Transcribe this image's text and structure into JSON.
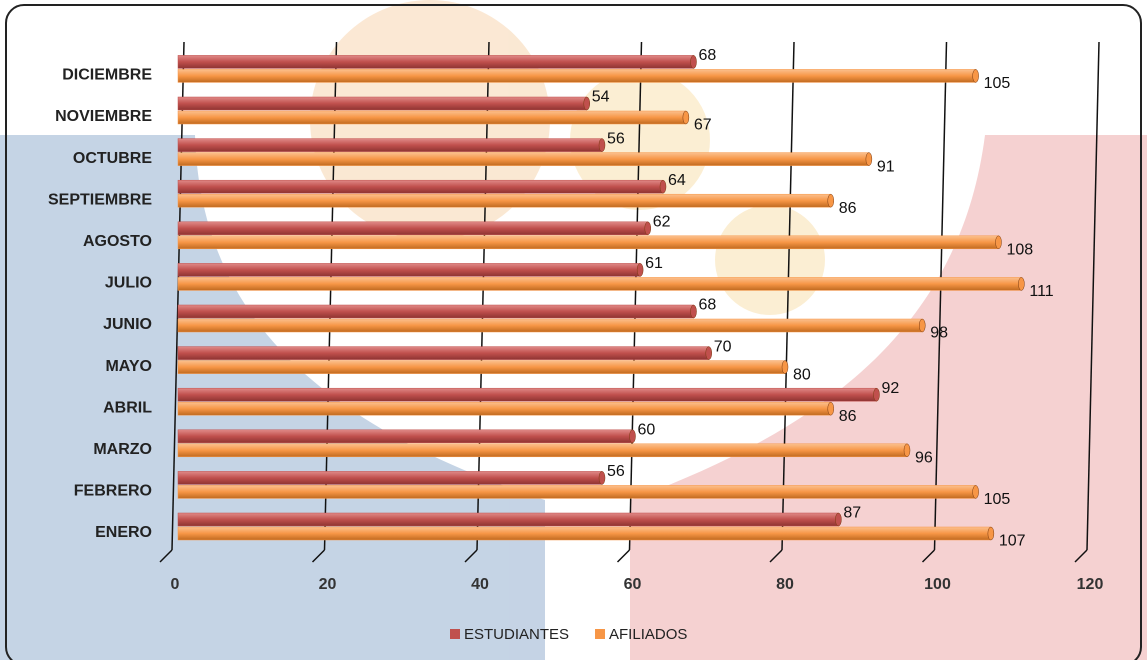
{
  "chart_data": {
    "type": "bar",
    "orientation": "horizontal",
    "categories": [
      "ENERO",
      "FEBRERO",
      "MARZO",
      "ABRIL",
      "MAYO",
      "JUNIO",
      "JULIO",
      "AGOSTO",
      "SEPTIEMBRE",
      "OCTUBRE",
      "NOVIEMBRE",
      "DICIEMBRE"
    ],
    "series": [
      {
        "name": "ESTUDIANTES",
        "color": "#c0504d",
        "values": [
          87,
          56,
          60,
          92,
          70,
          68,
          61,
          62,
          64,
          56,
          54,
          68
        ]
      },
      {
        "name": "AFILIADOS",
        "color": "#f79646",
        "values": [
          107,
          105,
          96,
          86,
          80,
          98,
          111,
          108,
          86,
          91,
          67,
          105
        ]
      }
    ],
    "xlim": [
      0,
      120
    ],
    "xticks": [
      0,
      20,
      40,
      60,
      80,
      100,
      120
    ],
    "grid": true,
    "legend": "bottom"
  }
}
